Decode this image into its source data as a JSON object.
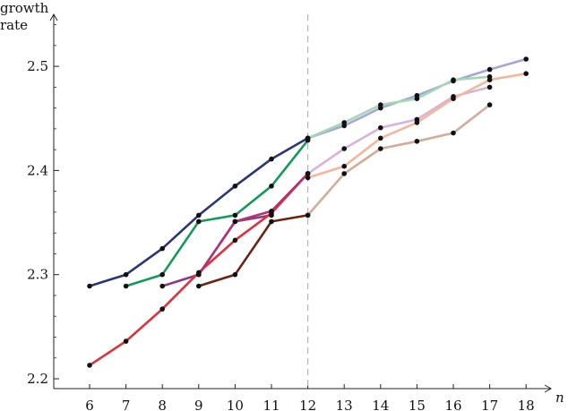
{
  "chart_data": {
    "type": "line",
    "title": "",
    "xlabel": "n",
    "ylabel": "growth rate",
    "ylabel_lines": [
      "growth",
      "rate"
    ],
    "x_ticks": [
      6,
      7,
      8,
      9,
      10,
      11,
      12,
      13,
      14,
      15,
      16,
      17,
      18
    ],
    "y_ticks": [
      2.2,
      2.3,
      2.4,
      2.5
    ],
    "y_tick_labels": [
      "2.2",
      "2.3",
      "2.4",
      "2.5"
    ],
    "xlim": [
      5,
      19
    ],
    "ylim": [
      2.19,
      2.545
    ],
    "grid": false,
    "legend": false,
    "reference_line_x": 12,
    "series": [
      {
        "color": "#2e3479",
        "x": [
          6,
          7,
          8,
          9,
          10,
          11,
          12
        ],
        "values": [
          2.289,
          2.3,
          2.325,
          2.357,
          2.385,
          2.411,
          2.431
        ]
      },
      {
        "color": "#139a5a",
        "x": [
          7,
          8,
          9,
          10,
          11,
          12
        ],
        "values": [
          2.289,
          2.3,
          2.351,
          2.357,
          2.385,
          2.429
        ]
      },
      {
        "color": "#8a3a86",
        "x": [
          8,
          9,
          10,
          11
        ],
        "values": [
          2.289,
          2.3,
          2.351,
          2.357
        ]
      },
      {
        "color": "#e0313b",
        "x": [
          6,
          7,
          8,
          9,
          10,
          11,
          12
        ],
        "values": [
          2.213,
          2.236,
          2.267,
          2.302,
          2.333,
          2.359,
          2.397
        ]
      },
      {
        "color": "#b03470",
        "x": [
          9,
          10,
          11,
          12
        ],
        "values": [
          2.3,
          2.351,
          2.361,
          2.397
        ]
      },
      {
        "color": "#6a240f",
        "x": [
          9,
          10,
          11,
          12
        ],
        "values": [
          2.289,
          2.3,
          2.351,
          2.357
        ]
      },
      {
        "color": "#a6a6d6",
        "x": [
          12,
          13,
          14,
          15,
          16,
          17,
          18
        ],
        "values": [
          2.431,
          2.443,
          2.46,
          2.472,
          2.486,
          2.497,
          2.507
        ]
      },
      {
        "color": "#a2d8b4",
        "x": [
          12,
          13,
          14,
          15,
          16,
          17
        ],
        "values": [
          2.431,
          2.446,
          2.463,
          2.469,
          2.487,
          2.49
        ]
      },
      {
        "color": "#d6b4d9",
        "x": [
          12,
          13,
          14,
          15,
          16,
          17
        ],
        "values": [
          2.397,
          2.421,
          2.441,
          2.449,
          2.471,
          2.48
        ]
      },
      {
        "color": "#f4b69c",
        "x": [
          12,
          13,
          14,
          15,
          16,
          17,
          18
        ],
        "values": [
          2.393,
          2.404,
          2.431,
          2.446,
          2.469,
          2.487,
          2.493
        ]
      },
      {
        "color": "#d2ac98",
        "x": [
          12,
          13,
          14,
          15,
          16,
          17
        ],
        "values": [
          2.357,
          2.397,
          2.421,
          2.428,
          2.436,
          2.463
        ]
      }
    ]
  }
}
